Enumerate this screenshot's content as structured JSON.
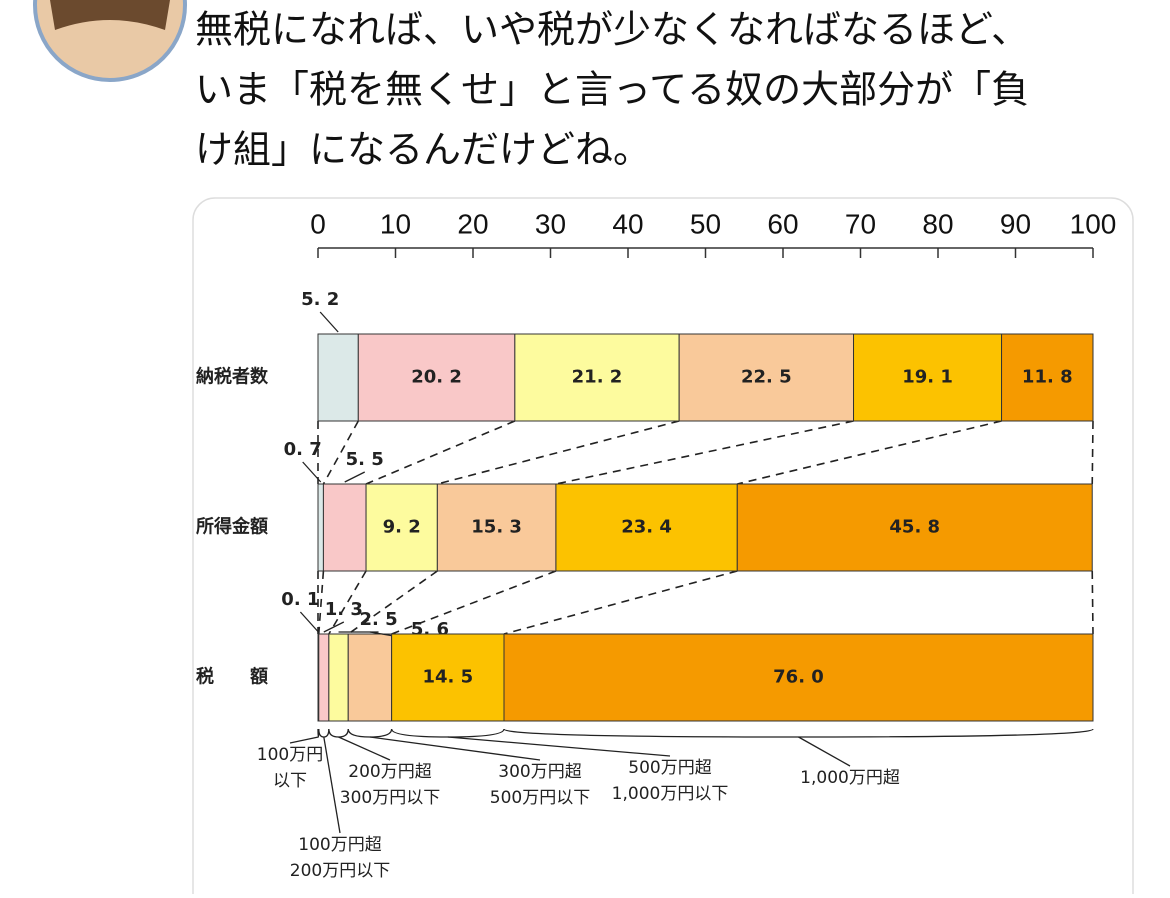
{
  "tweet": {
    "lines": [
      "無税になれば、いや税が少なくなればなるほど、",
      "いま「税を無くせ」と言ってる奴の大部分が「負",
      "け組」になるんだけどね。"
    ]
  },
  "chart_data": {
    "type": "bar",
    "orientation": "horizontal",
    "stacked": true,
    "categories": [
      "納税者数",
      "所得金額",
      "税　　額"
    ],
    "xlim": [
      0,
      100
    ],
    "xticks": [
      0,
      10,
      20,
      30,
      40,
      50,
      60,
      70,
      80,
      90,
      100
    ],
    "series": [
      {
        "name": [
          "100万円",
          "以下"
        ],
        "color": "#dce9e8",
        "values": [
          5.2,
          0.7,
          0.1
        ],
        "value_labels": [
          "5. 2",
          "0. 7",
          "0. 1"
        ]
      },
      {
        "name": [
          "100万円超",
          "200万円以下"
        ],
        "color": "#f9c8c8",
        "values": [
          20.2,
          5.5,
          1.3
        ],
        "value_labels": [
          "20. 2",
          "5. 5",
          "1. 3"
        ]
      },
      {
        "name": [
          "200万円超",
          "300万円以下"
        ],
        "color": "#fdfb9e",
        "values": [
          21.2,
          9.2,
          2.5
        ],
        "value_labels": [
          "21. 2",
          "9. 2",
          "2. 5"
        ]
      },
      {
        "name": [
          "300万円超",
          "500万円以下"
        ],
        "color": "#f9c99a",
        "values": [
          22.5,
          15.3,
          5.6
        ],
        "value_labels": [
          "22. 5",
          "15. 3",
          "5. 6"
        ]
      },
      {
        "name": [
          "500万円超",
          "1,000万円以下"
        ],
        "color": "#fcc200",
        "values": [
          19.1,
          23.4,
          14.5
        ],
        "value_labels": [
          "19. 1",
          "23. 4",
          "14. 5"
        ]
      },
      {
        "name": [
          "1,000万円超"
        ],
        "color": "#f59a00",
        "values": [
          11.8,
          45.8,
          76.0
        ],
        "value_labels": [
          "11. 8",
          "45. 8",
          "76. 0"
        ]
      }
    ]
  }
}
